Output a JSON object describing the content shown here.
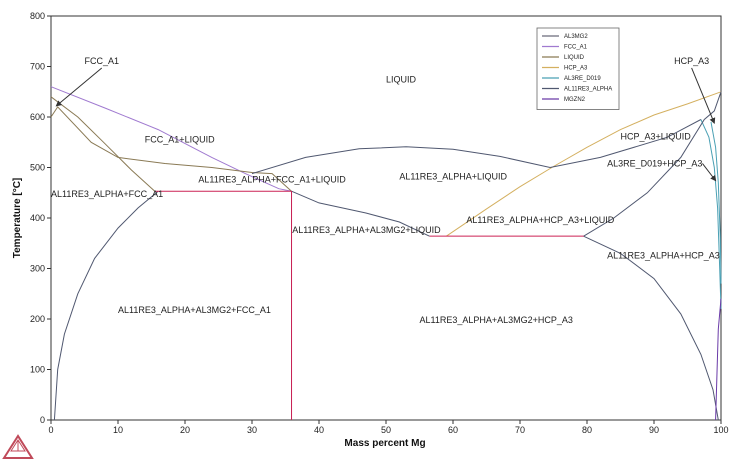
{
  "chart_data": {
    "type": "line",
    "title": "",
    "xlabel": "Mass percent Mg",
    "ylabel": "Temperature [°C]",
    "xlim": [
      0,
      100
    ],
    "ylim": [
      0,
      800
    ],
    "xticks": [
      0,
      10,
      20,
      30,
      40,
      50,
      60,
      70,
      80,
      90,
      100
    ],
    "yticks": [
      0,
      100,
      200,
      300,
      400,
      500,
      600,
      700,
      800
    ],
    "grid": false,
    "legend_position": "top-right",
    "series": [
      {
        "name": "AL3MG2",
        "color": "#6a6a7a",
        "segments": [
          [
            [
              50.0,
              541
            ],
            [
              50.0,
              541
            ]
          ]
        ]
      },
      {
        "name": "FCC_A1",
        "color": "#a07ad0",
        "segments": [
          [
            [
              0,
              660
            ],
            [
              8,
              618
            ],
            [
              16,
              575
            ],
            [
              24,
              520
            ],
            [
              29,
              488
            ],
            [
              34,
              458
            ],
            [
              35.9,
              453
            ]
          ]
        ]
      },
      {
        "name": "LIQUID",
        "color": "#8a7a55",
        "segments": [
          [
            [
              0,
              640
            ],
            [
              4,
              600
            ],
            [
              8,
              548
            ],
            [
              12,
              495
            ],
            [
              15.5,
              453
            ]
          ],
          [
            [
              0,
              600
            ],
            [
              1,
              620
            ],
            [
              6,
              550
            ],
            [
              10,
              520
            ],
            [
              17,
              508
            ],
            [
              24,
              500
            ],
            [
              30,
              490
            ],
            [
              33,
              488
            ],
            [
              35.9,
              453
            ]
          ]
        ]
      },
      {
        "name": "HCP_A3",
        "color": "#d4b060",
        "segments": [
          [
            [
              59,
              364
            ],
            [
              65,
              418
            ],
            [
              70,
              462
            ],
            [
              75,
              502
            ],
            [
              80,
              540
            ],
            [
              85,
              575
            ],
            [
              90,
              604
            ],
            [
              95,
              626
            ],
            [
              100,
              650
            ]
          ]
        ]
      },
      {
        "name": "AL3RE_D019",
        "color": "#4aa0b4",
        "segments": [
          [
            [
              97,
              595
            ],
            [
              98.2,
              560
            ],
            [
              99,
              500
            ],
            [
              99.5,
              420
            ],
            [
              99.8,
              300
            ],
            [
              100,
              220
            ]
          ],
          [
            [
              98.5,
              590
            ],
            [
              99.2,
              540
            ],
            [
              99.6,
              470
            ],
            [
              99.9,
              360
            ],
            [
              100,
              270
            ]
          ]
        ]
      },
      {
        "name": "AL11RE3_ALPHA",
        "color": "#505870",
        "segments": [
          [
            [
              0.5,
              0
            ],
            [
              1,
              100
            ],
            [
              2,
              170
            ],
            [
              4,
              250
            ],
            [
              6.5,
              320
            ],
            [
              10,
              380
            ],
            [
              13,
              420
            ],
            [
              16,
              453
            ]
          ],
          [
            [
              35.9,
              0
            ],
            [
              35.9,
              453
            ]
          ],
          [
            [
              30,
              488
            ],
            [
              38,
              520
            ],
            [
              46,
              537
            ],
            [
              53,
              541
            ],
            [
              60,
              536
            ],
            [
              67,
              522
            ],
            [
              74.5,
              500
            ],
            [
              82,
              520
            ],
            [
              92,
              560
            ],
            [
              97,
              595
            ]
          ],
          [
            [
              35.9,
              453
            ],
            [
              40,
              430
            ],
            [
              47,
              410
            ],
            [
              52,
              392
            ],
            [
              56.5,
              364
            ]
          ],
          [
            [
              79.5,
              364
            ],
            [
              84,
              400
            ],
            [
              89,
              450
            ],
            [
              94,
              520
            ],
            [
              97.5,
              595
            ],
            [
              99,
              612
            ],
            [
              100,
              650
            ]
          ],
          [
            [
              79.5,
              364
            ],
            [
              85,
              330
            ],
            [
              90,
              280
            ],
            [
              94,
              210
            ],
            [
              97,
              130
            ],
            [
              98.8,
              60
            ],
            [
              99.6,
              0
            ]
          ]
        ]
      },
      {
        "name": "MGZN2",
        "color": "#6a3aa8",
        "segments": [
          [
            [
              99.2,
              0
            ],
            [
              99.6,
              180
            ],
            [
              100,
              240
            ]
          ]
        ]
      }
    ],
    "reference_lines": [
      {
        "type": "horizontal",
        "y": 453,
        "x": [
          15.5,
          35.9
        ],
        "color": "#cc2255"
      },
      {
        "type": "horizontal",
        "y": 364,
        "x": [
          56.5,
          79.5
        ],
        "color": "#cc2255"
      },
      {
        "type": "vertical",
        "x": 35.9,
        "y": [
          0,
          453
        ],
        "color": "#cc2255"
      }
    ],
    "annotations": [
      {
        "text": "FCC_A1",
        "x": 5,
        "y": 705,
        "arrow_to": [
          0.8,
          622
        ]
      },
      {
        "text": "LIQUID",
        "x": 50,
        "y": 668
      },
      {
        "text": "FCC_A1+LIQUID",
        "x": 14,
        "y": 550
      },
      {
        "text": "AL11RE3_ALPHA+FCC_A1+LIQUID",
        "x": 22,
        "y": 470
      },
      {
        "text": "AL11RE3_ALPHA+LIQUID",
        "x": 52,
        "y": 476
      },
      {
        "text": "AL11RE3_ALPHA+FCC_A1",
        "x": 0,
        "y": 442
      },
      {
        "text": "AL11RE3_ALPHA+AL3MG2+LIQUID",
        "x": 36,
        "y": 370
      },
      {
        "text": "AL11RE3_ALPHA+HCP_A3+LIQUID",
        "x": 62,
        "y": 390
      },
      {
        "text": "HCP_A3+LIQUID",
        "x": 85,
        "y": 555
      },
      {
        "text": "AL3RE_D019+HCP_A3",
        "x": 83,
        "y": 502,
        "arrow_to": [
          99.2,
          474
        ]
      },
      {
        "text": "HCP_A3",
        "x": 93,
        "y": 705,
        "arrow_to": [
          99,
          588
        ]
      },
      {
        "text": "AL11RE3_ALPHA+HCP_A3",
        "x": 83,
        "y": 320
      },
      {
        "text": "AL11RE3_ALPHA+AL3MG2+FCC_A1",
        "x": 10,
        "y": 212
      },
      {
        "text": "AL11RE3_ALPHA+AL3MG2+HCP_A3",
        "x": 55,
        "y": 192
      }
    ]
  },
  "logo": {
    "name": "triangle-logo-icon",
    "color": "#c04a5a"
  }
}
